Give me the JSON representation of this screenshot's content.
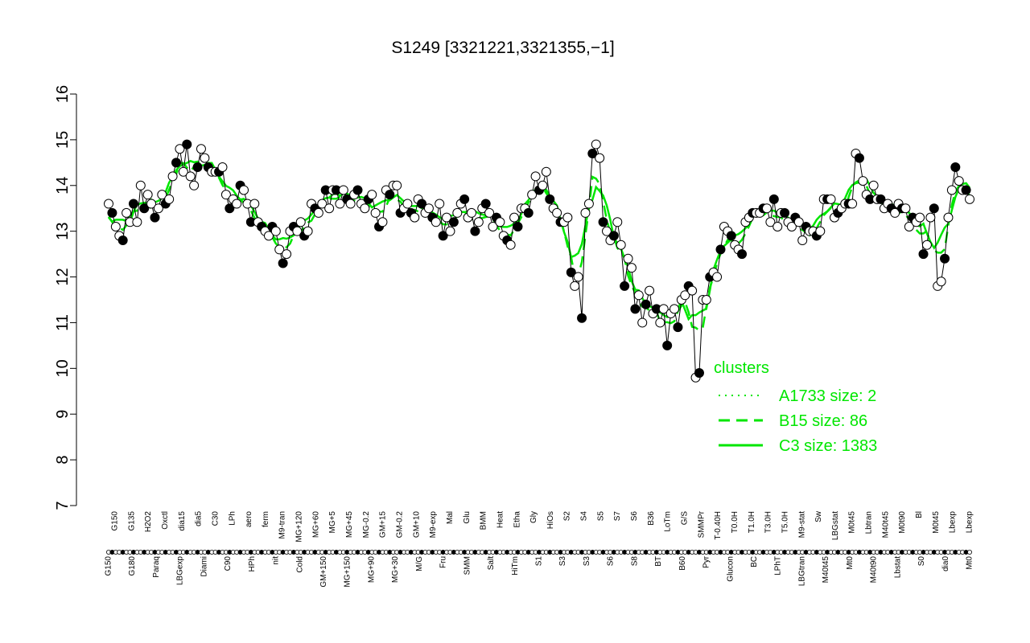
{
  "chart_data": {
    "type": "line",
    "title": "S1249 [3321221,3321355,−1]",
    "xlabel": "",
    "ylabel": "",
    "ylim": [
      7,
      16
    ],
    "yticks": [
      7,
      8,
      9,
      10,
      11,
      12,
      13,
      14,
      15,
      16
    ],
    "grid": false,
    "legend": {
      "title": "clusters",
      "placement": "bottom-right",
      "entries": [
        {
          "label": "A1733 size: 2",
          "style": "dotted"
        },
        {
          "label": "B15 size: 86",
          "style": "dashed"
        },
        {
          "label": "C3 size: 1383",
          "style": "solid"
        }
      ]
    },
    "x_tick_labels_top": [
      "G150",
      "G135",
      "H2O2",
      "Oxctl",
      "dia15",
      "dia5",
      "C30",
      "LPh",
      "aero",
      "ferm",
      "M9-tran",
      "MG+120",
      "MG+60",
      "MG+5",
      "MG+45",
      "MG-0.2",
      "GM+15",
      "GM-0.2",
      "GM+10",
      "M9-exp",
      "Mal",
      "Glu",
      "BMM",
      "Heat",
      "Etha",
      "Gly",
      "HiOs",
      "S2",
      "S4",
      "S5",
      "S7",
      "S6",
      "B36",
      "LoTm",
      "G/S",
      "SMMPr",
      "T-0.40H",
      "T0.0H",
      "T1.0H",
      "T3.0H",
      "T5.0H",
      "M9-stat",
      "Sw",
      "LBGstat",
      "M0t45",
      "Lbtran",
      "M40t45",
      "M0t90",
      "Bl",
      "M0t45",
      "Lbexp",
      "Lbexp"
    ],
    "x_tick_labels_bottom": [
      "G150",
      "G180",
      "Paraq",
      "LBGexp",
      "Diami",
      "C90",
      "HPh",
      "nit",
      "Cold",
      "GM+150",
      "MG+150",
      "MG+90",
      "MG+30",
      "M/G",
      "Fru",
      "SMM",
      "Salt",
      "HiTm",
      "S1",
      "S3",
      "S3",
      "S6",
      "S8",
      "BT",
      "B60",
      "Pyr",
      "Glucon",
      "BC",
      "LPhT",
      "LBGtran",
      "M40t45",
      "Mt0",
      "M40t90",
      "Lbstat",
      "S0",
      "dia0",
      "Mt0"
    ],
    "colors": {
      "line": "#000000",
      "points_open": "#ffffff",
      "points_filled": "#000000",
      "cluster": "#00e600",
      "axis": "#000000"
    },
    "series": [
      {
        "values": [
          13.6,
          13.4,
          13.1,
          12.9,
          12.8,
          13.4,
          13.2,
          13.6,
          13.2,
          14.0,
          13.5,
          13.8,
          13.6,
          13.3,
          13.5,
          13.8,
          13.6,
          13.7,
          14.2,
          14.5,
          14.8,
          14.3,
          14.9,
          14.2,
          14.0,
          14.4,
          14.8,
          14.6,
          14.4,
          14.3,
          14.3,
          14.3,
          14.4,
          13.8,
          13.5,
          13.7,
          13.6,
          14.0,
          13.9,
          13.6,
          13.2,
          13.6,
          13.2,
          13.1,
          13.0,
          12.9,
          13.1,
          13.0,
          12.6,
          12.3,
          12.5,
          13.0,
          13.1,
          13.0,
          13.2,
          12.9,
          13.0,
          13.6,
          13.5,
          13.4,
          13.6,
          13.9,
          13.5,
          13.9,
          13.9,
          13.6,
          13.9,
          13.7,
          13.6,
          13.8,
          13.9,
          13.6,
          13.5,
          13.7,
          13.8,
          13.4,
          13.1,
          13.2,
          13.9,
          13.8,
          14.0,
          14.0,
          13.4,
          13.5,
          13.6,
          13.4,
          13.3,
          13.7,
          13.6,
          13.4,
          13.5,
          13.3,
          13.2,
          13.6,
          12.9,
          13.3,
          13.0,
          13.2,
          13.4,
          13.6,
          13.7,
          13.3,
          13.4,
          13.0,
          13.2,
          13.5,
          13.6,
          13.4,
          13.1,
          13.3,
          13.2,
          12.9,
          12.8,
          12.7,
          13.3,
          13.1,
          13.5,
          13.5,
          13.4,
          13.8,
          14.2,
          13.9,
          14.0,
          14.3,
          13.7,
          13.5,
          13.4,
          13.2,
          13.2,
          13.3,
          12.1,
          11.8,
          12.0,
          11.1,
          13.4,
          13.6,
          14.7,
          14.9,
          14.6,
          13.2,
          13.0,
          12.8,
          12.9,
          13.2,
          12.7,
          11.8,
          12.4,
          12.2,
          11.3,
          11.6,
          11.0,
          11.4,
          11.7,
          11.2,
          11.3,
          11.0,
          11.3,
          10.5,
          11.2,
          11.3,
          10.9,
          11.5,
          11.6,
          11.8,
          11.7,
          9.8,
          9.9,
          11.5,
          11.5,
          12.0,
          12.1,
          12.0,
          12.6,
          13.1,
          13.0,
          12.9,
          12.7,
          12.6,
          12.5,
          13.2,
          13.3,
          13.4,
          13.4,
          13.4,
          13.5,
          13.5,
          13.2,
          13.7,
          13.1,
          13.4,
          13.4,
          13.2,
          13.1,
          13.3,
          13.2,
          12.8,
          13.1,
          13.0,
          13.0,
          12.9,
          13.0,
          13.7,
          13.7,
          13.7,
          13.3,
          13.4,
          13.5,
          13.6,
          13.6,
          13.6,
          14.7,
          14.6,
          14.1,
          13.8,
          13.7,
          14.0,
          13.7,
          13.7,
          13.5,
          13.6,
          13.5,
          13.4,
          13.6,
          13.5,
          13.5,
          13.1,
          13.3,
          13.2,
          13.3,
          12.5,
          12.7,
          13.3,
          13.5,
          11.8,
          11.9,
          12.4,
          13.3,
          13.9,
          14.4,
          14.1,
          13.9,
          13.9,
          13.7
        ]
      }
    ]
  }
}
